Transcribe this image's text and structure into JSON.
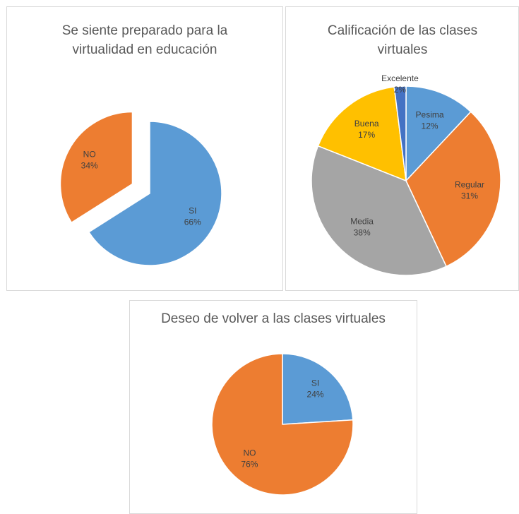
{
  "chart_data": [
    {
      "type": "pie",
      "title": "Se siente preparado para la virtualidad en educación",
      "categories": [
        "SI",
        "NO"
      ],
      "values": [
        66,
        34
      ],
      "value_labels": [
        "66%",
        "34%"
      ],
      "colors": [
        "#5b9bd5",
        "#ed7d31"
      ],
      "explode": [
        false,
        true
      ]
    },
    {
      "type": "pie",
      "title": "Calificación de las clases virtuales",
      "categories": [
        "Pesima",
        "Regular",
        "Media",
        "Buena",
        "Excelente"
      ],
      "values": [
        12,
        31,
        38,
        17,
        2
      ],
      "value_labels": [
        "12%",
        "31%",
        "38%",
        "17%",
        "2%"
      ],
      "colors": [
        "#5b9bd5",
        "#ed7d31",
        "#a5a5a5",
        "#ffc000",
        "#4472c4"
      ],
      "explode": [
        false,
        false,
        false,
        false,
        false
      ]
    },
    {
      "type": "pie",
      "title": "Deseo de volver a las clases virtuales",
      "categories": [
        "SI",
        "NO"
      ],
      "values": [
        24,
        76
      ],
      "value_labels": [
        "24%",
        "76%"
      ],
      "colors": [
        "#5b9bd5",
        "#ed7d31"
      ],
      "explode": [
        false,
        false
      ]
    }
  ]
}
